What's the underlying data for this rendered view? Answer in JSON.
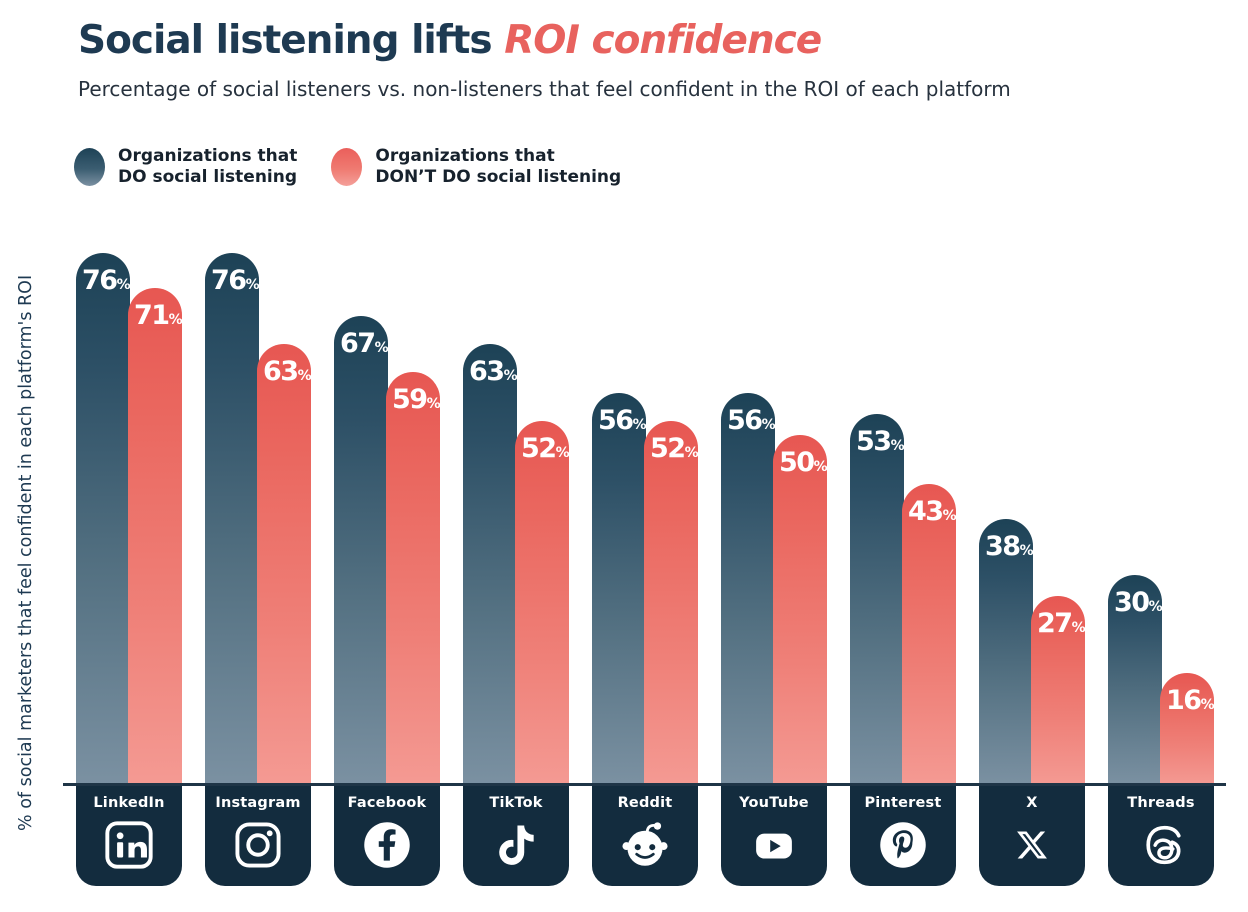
{
  "header": {
    "title_main": "Social listening lifts ",
    "title_accent": "ROI confidence",
    "subtitle": "Percentage of social listeners vs. non-listeners that feel confident in the ROI of each platform"
  },
  "legend": {
    "do": {
      "line1": "Organizations that",
      "line2": "DO social listening",
      "color": "#1d4256"
    },
    "dont": {
      "line1": "Organizations that",
      "line2": "DON’T DO social listening",
      "color": "#e75752"
    }
  },
  "y_axis_label": "% of social marketers that feel confident in each platform's ROI",
  "colors": {
    "navy_bar_top": "#1d4256",
    "navy_bar_bottom": "#7b91a2",
    "coral_bar_top": "#e75752",
    "coral_bar_bottom": "#f49a93",
    "platform_box": "#132c3e",
    "title_navy": "#1e3a52",
    "title_coral": "#e8625e"
  },
  "chart_data": {
    "type": "bar",
    "title": "Social listening lifts ROI confidence",
    "subtitle": "Percentage of social listeners vs. non-listeners that feel confident in the ROI of each platform",
    "categories": [
      "LinkedIn",
      "Instagram",
      "Facebook",
      "TikTok",
      "Reddit",
      "YouTube",
      "Pinterest",
      "X",
      "Threads"
    ],
    "series": [
      {
        "name": "Organizations that DO social listening",
        "color": "#1d4256",
        "values": [
          76,
          76,
          67,
          63,
          56,
          56,
          53,
          38,
          30
        ]
      },
      {
        "name": "Organizations that DON’T DO social listening",
        "color": "#e75752",
        "values": [
          71,
          63,
          59,
          52,
          52,
          50,
          43,
          27,
          16
        ]
      }
    ],
    "value_suffix": "%",
    "xlabel": "",
    "ylabel": "% of social marketers that feel confident in each platform's ROI",
    "ylim": [
      0,
      80
    ],
    "grid": false,
    "legend_position": "top-left",
    "bar_style": "rounded-top gradient pills, value labels inside bar tops"
  },
  "platforms": [
    {
      "name": "LinkedIn",
      "icon": "linkedin-icon"
    },
    {
      "name": "Instagram",
      "icon": "instagram-icon"
    },
    {
      "name": "Facebook",
      "icon": "facebook-icon"
    },
    {
      "name": "TikTok",
      "icon": "tiktok-icon"
    },
    {
      "name": "Reddit",
      "icon": "reddit-icon"
    },
    {
      "name": "YouTube",
      "icon": "youtube-icon"
    },
    {
      "name": "Pinterest",
      "icon": "pinterest-icon"
    },
    {
      "name": "X",
      "icon": "x-icon"
    },
    {
      "name": "Threads",
      "icon": "threads-icon"
    }
  ]
}
